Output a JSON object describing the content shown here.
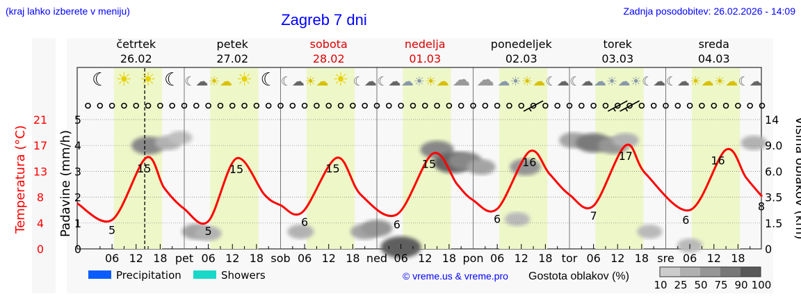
{
  "header": {
    "region_hint": "(kraj lahko izberete v meniju)",
    "title": "Zagreb 7 dni",
    "updated": "Zadnja posodobitev: 26.02.2026 - 14:09"
  },
  "colors": {
    "link_blue": "#0000ff",
    "weekend_red": "#dd0000",
    "temperature": "#ff0000",
    "daylight": "#eef7c8",
    "precipitation": "#0a5cff",
    "showers": "#18d8c8"
  },
  "chart_data": {
    "type": "line",
    "now": "26.02 14:09",
    "days": [
      {
        "name": "četrtek",
        "date": "26.02",
        "abbr": "čet",
        "weekend": false
      },
      {
        "name": "petek",
        "date": "27.02",
        "abbr": "pet",
        "weekend": false
      },
      {
        "name": "sobota",
        "date": "28.02",
        "abbr": "sob",
        "weekend": true
      },
      {
        "name": "nedelja",
        "date": "01.03",
        "abbr": "ned",
        "weekend": true
      },
      {
        "name": "ponedeljek",
        "date": "02.03",
        "abbr": "pon",
        "weekend": false
      },
      {
        "name": "torek",
        "date": "03.03",
        "abbr": "tor",
        "weekend": false
      },
      {
        "name": "sreda",
        "date": "04.03",
        "abbr": "sre",
        "weekend": false
      }
    ],
    "hour_ticks": [
      "06",
      "12",
      "18"
    ],
    "left_axis_temperature": {
      "label": "Temperatura (°C)",
      "ticks": [
        "0",
        "4",
        "8",
        "13",
        "17",
        "21"
      ],
      "range": [
        0,
        21
      ]
    },
    "left_axis_precip": {
      "label": "Padavine (mm/h)",
      "ticks": [
        "0",
        "1",
        "2",
        "3",
        "4",
        "5"
      ],
      "range": [
        0,
        5
      ]
    },
    "right_axis_cloud_height": {
      "label": "Višina oblakov (km)",
      "ticks": [
        "0",
        "1.5",
        "3.5",
        "6.0",
        "9.0",
        "14"
      ]
    },
    "temperature": [
      [
        "25.02 21:18",
        7.4
      ],
      [
        "26.02 06:00",
        4.7
      ],
      [
        "26.02 14:30",
        14.8
      ],
      [
        "26.02 19:00",
        9.9
      ],
      [
        "27.02 00:00",
        6.5
      ],
      [
        "27.02 06:00",
        4.5
      ],
      [
        "27.02 13:00",
        14.7
      ],
      [
        "27.02 20:00",
        8.8
      ],
      [
        "28.02 00:00",
        7.1
      ],
      [
        "28.02 05:30",
        6.0
      ],
      [
        "28.02 14:00",
        14.8
      ],
      [
        "28.02 20:00",
        8.8
      ],
      [
        "01.03 05:00",
        5.6
      ],
      [
        "01.03 14:00",
        15.5
      ],
      [
        "01.03 20:00",
        10.5
      ],
      [
        "02.03 00:00",
        7.9
      ],
      [
        "02.03 06:00",
        6.5
      ],
      [
        "02.03 14:00",
        15.8
      ],
      [
        "02.03 19:00",
        12.2
      ],
      [
        "03.03 00:00",
        8.8
      ],
      [
        "03.03 06:00",
        7.0
      ],
      [
        "03.03 14:00",
        16.8
      ],
      [
        "03.03 19:00",
        12.2
      ],
      [
        "04.03 06:00",
        6.3
      ],
      [
        "04.03 15:00",
        16.1
      ],
      [
        "04.03 20:00",
        11.6
      ],
      [
        "05.03 00:00",
        8.5
      ]
    ],
    "temperature_labels": [
      [
        "26.02 06:00",
        "5"
      ],
      [
        "26.02 14:00",
        "15"
      ],
      [
        "27.02 06:00",
        "5"
      ],
      [
        "27.02 13:00",
        "15"
      ],
      [
        "28.02 06:00",
        "6"
      ],
      [
        "28.02 13:00",
        "15"
      ],
      [
        "01.03 05:00",
        "6"
      ],
      [
        "01.03 13:00",
        "15"
      ],
      [
        "02.03 06:00",
        "6"
      ],
      [
        "02.03 14:00",
        "16"
      ],
      [
        "03.03 06:00",
        "7"
      ],
      [
        "03.03 14:00",
        "17"
      ],
      [
        "04.03 05:00",
        "6"
      ],
      [
        "04.03 13:00",
        "16"
      ],
      [
        "05.03 00:00",
        "8"
      ]
    ],
    "cloud_patches": [
      [
        "26.02 15:00",
        9.0,
        60
      ],
      [
        "26.02 20:00",
        9.5,
        30
      ],
      [
        "26.02 23:00",
        10.5,
        20
      ],
      [
        "27.02 03:00",
        1.0,
        40
      ],
      [
        "27.02 06:00",
        0.9,
        30
      ],
      [
        "28.02 05:00",
        1.0,
        30
      ],
      [
        "28.02 21:00",
        1.0,
        40
      ],
      [
        "01.03 00:00",
        1.2,
        50
      ],
      [
        "01.03 06:00",
        0.1,
        90
      ],
      [
        "01.03 15:00",
        8.5,
        60
      ],
      [
        "01.03 19:00",
        7.0,
        85
      ],
      [
        "01.03 22:00",
        7.2,
        60
      ],
      [
        "02.03 02:00",
        6.5,
        40
      ],
      [
        "02.03 11:00",
        1.8,
        25
      ],
      [
        "02.03 13:00",
        6.5,
        50
      ],
      [
        "03.03 01:00",
        10.0,
        40
      ],
      [
        "03.03 06:00",
        9.5,
        70
      ],
      [
        "03.03 11:00",
        9.0,
        50
      ],
      [
        "03.03 14:00",
        10.0,
        30
      ],
      [
        "03.03 20:00",
        1.0,
        25
      ],
      [
        "04.03 06:00",
        0.2,
        25
      ],
      [
        "04.03 22:00",
        9.5,
        30
      ]
    ],
    "weather_icons": [
      "moon",
      "sun",
      "sun",
      "moon",
      "moon-cloud",
      "sun-cloud",
      "sun",
      "moon",
      "moon-cloud",
      "sun-cloud",
      "sun",
      "moon-cloud",
      "moon-cloud",
      "cloud-sun",
      "sun-cloud",
      "cloud",
      "cloud",
      "cloud-sun",
      "sun-cloud",
      "moon-cloud",
      "moon-cloud",
      "cloud-sun",
      "cloud-sun",
      "moon-cloud",
      "moon-cloud",
      "sun-cloud",
      "sun-cloud",
      "moon-cloud"
    ],
    "wind_barbs": [
      [
        "02.03 15:00",
        "light"
      ],
      [
        "03.03 12:00",
        "light"
      ],
      [
        "03.03 15:00",
        "light"
      ]
    ],
    "grid": true
  },
  "legend": {
    "precipitation": "Precipitation",
    "showers": "Showers",
    "copyright": "© vreme.us & vreme.pro",
    "cloud_density_title": "Gostota oblakov (%)",
    "cloud_density_ticks": [
      "10",
      "25",
      "50",
      "75",
      "90",
      "100"
    ],
    "cloud_density_colors": [
      "#cccccc",
      "#b0b0b0",
      "#969696",
      "#787878",
      "#585858"
    ]
  }
}
